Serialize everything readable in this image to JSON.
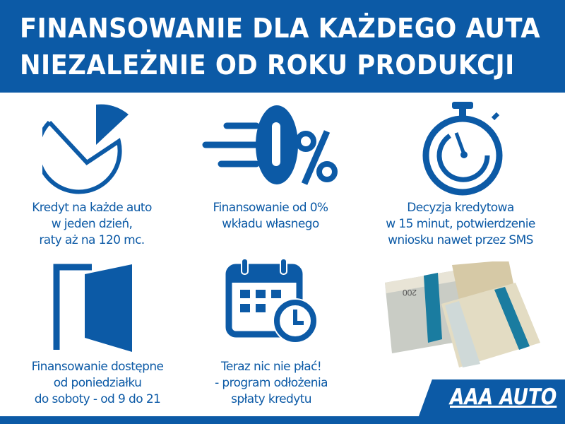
{
  "header": {
    "line1": "FINANSOWANIE DLA KAŻDEGO AUTA",
    "line2": "NIEZALEŻNIE OD ROKU PRODUKCJI"
  },
  "features": [
    {
      "icon": "pie-chart-icon",
      "text": "Kredyt na każde auto\nw jeden dzień,\nraty aż na 120 mc."
    },
    {
      "icon": "zero-percent-icon",
      "icon_text": "0%",
      "text": "Finansowanie od 0%\nwkładu własnego"
    },
    {
      "icon": "stopwatch-icon",
      "text": "Decyzja kredytowa\nw 15 minut, potwierdzenie\nwniosku nawet przez SMS"
    },
    {
      "icon": "open-door-icon",
      "text": "Finansowanie dostępne\nod poniedziałku\ndo soboty - od 9 do 21"
    },
    {
      "icon": "calendar-clock-icon",
      "text": "Teraz nic nie płać!\n- program odłożenia\nspłaty kredytu"
    }
  ],
  "image": {
    "icon": "banknote-stack-image",
    "banknote_value": "200"
  },
  "logo": {
    "text": "AAA AUTO"
  },
  "colors": {
    "brand_blue": "#0c5aa6",
    "background": "#ffffff"
  }
}
